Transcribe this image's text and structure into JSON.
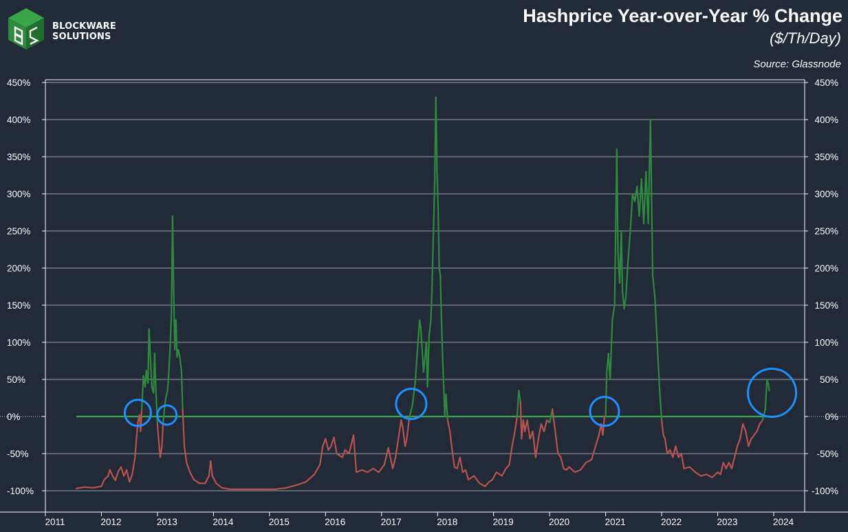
{
  "brand": {
    "line1": "BLOCKWARE",
    "line2": "SOLUTIONS"
  },
  "header": {
    "title": "Hashprice Year-over-Year % Change",
    "subtitle": "($/Th/Day)",
    "source": "Source: Glassnode"
  },
  "colors": {
    "background": "#222a38",
    "positive": "#2e8b3e",
    "negative": "#b85450",
    "zero_positive": "#3aa64a",
    "highlight_circle": "#1e90ff",
    "grid": "#ffffff"
  },
  "chart_data": {
    "type": "line",
    "title": "Hashprice Year-over-Year % Change",
    "subtitle": "($/Th/Day)",
    "xlabel": "",
    "ylabel": "",
    "x_ticks": [
      "2011",
      "2012",
      "2013",
      "2014",
      "2015",
      "2016",
      "2017",
      "2018",
      "2019",
      "2020",
      "2021",
      "2022",
      "2023",
      "2024"
    ],
    "y_ticks": [
      "450%",
      "400%",
      "350%",
      "300%",
      "250%",
      "200%",
      "150%",
      "100%",
      "50%",
      "0%",
      "-50%",
      "-100%"
    ],
    "ylim": [
      -100,
      450
    ],
    "xlim": [
      2011.0,
      2024.5
    ],
    "grid": true,
    "secondary_y_axis": true,
    "color_rule": "green when value > 0, red when value <= 0",
    "series": [
      {
        "points": [
          [
            2011.55,
            -97
          ],
          [
            2011.7,
            -95
          ],
          [
            2011.85,
            -96
          ],
          [
            2012.0,
            -94
          ],
          [
            2012.05,
            -85
          ],
          [
            2012.12,
            -80
          ],
          [
            2012.15,
            -72
          ],
          [
            2012.2,
            -80
          ],
          [
            2012.25,
            -86
          ],
          [
            2012.3,
            -74
          ],
          [
            2012.35,
            -68
          ],
          [
            2012.4,
            -80
          ],
          [
            2012.45,
            -72
          ],
          [
            2012.5,
            -88
          ],
          [
            2012.55,
            -78
          ],
          [
            2012.6,
            -55
          ],
          [
            2012.62,
            -35
          ],
          [
            2012.65,
            -8
          ],
          [
            2012.68,
            2
          ],
          [
            2012.7,
            -20
          ],
          [
            2012.72,
            10
          ],
          [
            2012.75,
            55
          ],
          [
            2012.78,
            40
          ],
          [
            2012.8,
            62
          ],
          [
            2012.83,
            45
          ],
          [
            2012.85,
            118
          ],
          [
            2012.88,
            70
          ],
          [
            2012.9,
            40
          ],
          [
            2012.93,
            32
          ],
          [
            2012.95,
            85
          ],
          [
            2012.97,
            40
          ],
          [
            2013.0,
            -10
          ],
          [
            2013.02,
            -30
          ],
          [
            2013.05,
            -55
          ],
          [
            2013.08,
            -40
          ],
          [
            2013.1,
            -10
          ],
          [
            2013.13,
            15
          ],
          [
            2013.15,
            25
          ],
          [
            2013.18,
            35
          ],
          [
            2013.2,
            55
          ],
          [
            2013.23,
            100
          ],
          [
            2013.25,
            140
          ],
          [
            2013.27,
            270
          ],
          [
            2013.29,
            170
          ],
          [
            2013.31,
            90
          ],
          [
            2013.33,
            130
          ],
          [
            2013.35,
            80
          ],
          [
            2013.37,
            90
          ],
          [
            2013.4,
            80
          ],
          [
            2013.43,
            60
          ],
          [
            2013.45,
            10
          ],
          [
            2013.48,
            -40
          ],
          [
            2013.52,
            -62
          ],
          [
            2013.58,
            -75
          ],
          [
            2013.65,
            -85
          ],
          [
            2013.75,
            -90
          ],
          [
            2013.85,
            -90
          ],
          [
            2013.92,
            -80
          ],
          [
            2013.95,
            -60
          ],
          [
            2013.98,
            -80
          ],
          [
            2014.05,
            -90
          ],
          [
            2014.15,
            -96
          ],
          [
            2014.3,
            -98
          ],
          [
            2014.5,
            -98
          ],
          [
            2014.7,
            -98
          ],
          [
            2014.9,
            -98
          ],
          [
            2015.1,
            -98
          ],
          [
            2015.3,
            -96
          ],
          [
            2015.5,
            -92
          ],
          [
            2015.65,
            -88
          ],
          [
            2015.8,
            -78
          ],
          [
            2015.9,
            -65
          ],
          [
            2015.95,
            -40
          ],
          [
            2016.0,
            -30
          ],
          [
            2016.05,
            -45
          ],
          [
            2016.1,
            -40
          ],
          [
            2016.15,
            -28
          ],
          [
            2016.2,
            -50
          ],
          [
            2016.3,
            -55
          ],
          [
            2016.35,
            -45
          ],
          [
            2016.42,
            -50
          ],
          [
            2016.5,
            -25
          ],
          [
            2016.55,
            -75
          ],
          [
            2016.65,
            -72
          ],
          [
            2016.75,
            -75
          ],
          [
            2016.85,
            -70
          ],
          [
            2016.95,
            -75
          ],
          [
            2017.05,
            -65
          ],
          [
            2017.12,
            -42
          ],
          [
            2017.2,
            -70
          ],
          [
            2017.25,
            -55
          ],
          [
            2017.3,
            -30
          ],
          [
            2017.35,
            -5
          ],
          [
            2017.38,
            -15
          ],
          [
            2017.42,
            -40
          ],
          [
            2017.45,
            -30
          ],
          [
            2017.5,
            0
          ],
          [
            2017.55,
            15
          ],
          [
            2017.6,
            45
          ],
          [
            2017.65,
            100
          ],
          [
            2017.68,
            130
          ],
          [
            2017.7,
            120
          ],
          [
            2017.75,
            60
          ],
          [
            2017.8,
            100
          ],
          [
            2017.82,
            40
          ],
          [
            2017.85,
            110
          ],
          [
            2017.88,
            130
          ],
          [
            2017.9,
            170
          ],
          [
            2017.93,
            260
          ],
          [
            2017.95,
            320
          ],
          [
            2017.97,
            430
          ],
          [
            2017.99,
            330
          ],
          [
            2018.01,
            280
          ],
          [
            2018.03,
            200
          ],
          [
            2018.05,
            190
          ],
          [
            2018.07,
            130
          ],
          [
            2018.09,
            80
          ],
          [
            2018.11,
            40
          ],
          [
            2018.13,
            0
          ],
          [
            2018.15,
            30
          ],
          [
            2018.18,
            -5
          ],
          [
            2018.22,
            -20
          ],
          [
            2018.26,
            -45
          ],
          [
            2018.3,
            -68
          ],
          [
            2018.35,
            -70
          ],
          [
            2018.4,
            -55
          ],
          [
            2018.45,
            -75
          ],
          [
            2018.5,
            -72
          ],
          [
            2018.55,
            -85
          ],
          [
            2018.65,
            -80
          ],
          [
            2018.75,
            -90
          ],
          [
            2018.85,
            -94
          ],
          [
            2018.92,
            -88
          ],
          [
            2018.98,
            -85
          ],
          [
            2019.05,
            -75
          ],
          [
            2019.15,
            -80
          ],
          [
            2019.22,
            -70
          ],
          [
            2019.28,
            -65
          ],
          [
            2019.33,
            -40
          ],
          [
            2019.38,
            -20
          ],
          [
            2019.42,
            0
          ],
          [
            2019.45,
            35
          ],
          [
            2019.48,
            20
          ],
          [
            2019.5,
            -30
          ],
          [
            2019.53,
            -5
          ],
          [
            2019.56,
            -20
          ],
          [
            2019.6,
            -5
          ],
          [
            2019.65,
            -30
          ],
          [
            2019.7,
            -20
          ],
          [
            2019.75,
            -55
          ],
          [
            2019.8,
            -30
          ],
          [
            2019.85,
            -10
          ],
          [
            2019.9,
            -20
          ],
          [
            2019.95,
            -5
          ],
          [
            2020.0,
            -8
          ],
          [
            2020.05,
            10
          ],
          [
            2020.1,
            -20
          ],
          [
            2020.15,
            -50
          ],
          [
            2020.2,
            -55
          ],
          [
            2020.25,
            -70
          ],
          [
            2020.3,
            -72
          ],
          [
            2020.35,
            -68
          ],
          [
            2020.45,
            -75
          ],
          [
            2020.55,
            -72
          ],
          [
            2020.65,
            -62
          ],
          [
            2020.75,
            -58
          ],
          [
            2020.82,
            -40
          ],
          [
            2020.88,
            -25
          ],
          [
            2020.92,
            -10
          ],
          [
            2020.95,
            -25
          ],
          [
            2020.98,
            0
          ],
          [
            2021.0,
            0
          ],
          [
            2021.02,
            60
          ],
          [
            2021.05,
            85
          ],
          [
            2021.08,
            50
          ],
          [
            2021.12,
            130
          ],
          [
            2021.16,
            150
          ],
          [
            2021.2,
            360
          ],
          [
            2021.22,
            220
          ],
          [
            2021.25,
            180
          ],
          [
            2021.28,
            250
          ],
          [
            2021.3,
            170
          ],
          [
            2021.33,
            145
          ],
          [
            2021.36,
            160
          ],
          [
            2021.4,
            210
          ],
          [
            2021.44,
            250
          ],
          [
            2021.48,
            300
          ],
          [
            2021.52,
            290
          ],
          [
            2021.56,
            310
          ],
          [
            2021.6,
            270
          ],
          [
            2021.64,
            320
          ],
          [
            2021.68,
            260
          ],
          [
            2021.72,
            330
          ],
          [
            2021.76,
            260
          ],
          [
            2021.8,
            400
          ],
          [
            2021.84,
            190
          ],
          [
            2021.88,
            160
          ],
          [
            2021.92,
            100
          ],
          [
            2021.96,
            40
          ],
          [
            2022.0,
            -5
          ],
          [
            2022.03,
            -25
          ],
          [
            2022.06,
            -30
          ],
          [
            2022.1,
            -50
          ],
          [
            2022.15,
            -45
          ],
          [
            2022.2,
            -55
          ],
          [
            2022.25,
            -40
          ],
          [
            2022.3,
            -55
          ],
          [
            2022.35,
            -50
          ],
          [
            2022.4,
            -70
          ],
          [
            2022.5,
            -68
          ],
          [
            2022.6,
            -75
          ],
          [
            2022.7,
            -80
          ],
          [
            2022.8,
            -78
          ],
          [
            2022.9,
            -82
          ],
          [
            2023.0,
            -75
          ],
          [
            2023.05,
            -78
          ],
          [
            2023.1,
            -62
          ],
          [
            2023.15,
            -70
          ],
          [
            2023.2,
            -62
          ],
          [
            2023.25,
            -70
          ],
          [
            2023.3,
            -55
          ],
          [
            2023.35,
            -40
          ],
          [
            2023.4,
            -30
          ],
          [
            2023.45,
            -10
          ],
          [
            2023.5,
            -20
          ],
          [
            2023.55,
            -40
          ],
          [
            2023.6,
            -30
          ],
          [
            2023.65,
            -25
          ],
          [
            2023.7,
            -20
          ],
          [
            2023.75,
            -10
          ],
          [
            2023.8,
            -5
          ],
          [
            2023.85,
            10
          ],
          [
            2023.88,
            50
          ],
          [
            2023.9,
            45
          ],
          [
            2023.92,
            35
          ]
        ]
      }
    ],
    "annotations": [
      {
        "type": "circle",
        "x": 2012.65,
        "y": 5
      },
      {
        "type": "circle",
        "x": 2013.17,
        "y": 2
      },
      {
        "type": "circle",
        "x": 2017.53,
        "y": 17
      },
      {
        "type": "circle",
        "x": 2020.98,
        "y": 7
      },
      {
        "type": "circle",
        "x": 2023.97,
        "y": 32
      }
    ]
  }
}
